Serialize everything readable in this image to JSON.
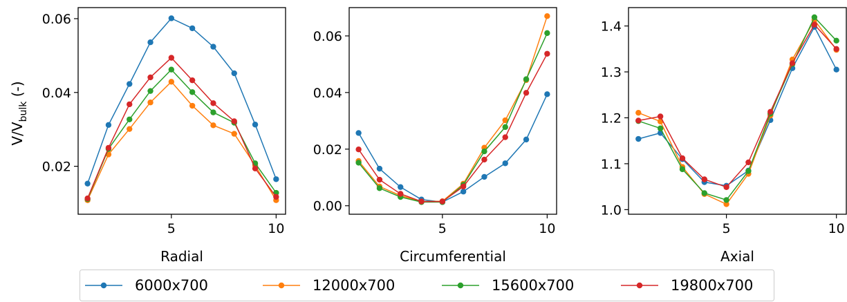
{
  "figure": {
    "ylabel_main": "V/V",
    "ylabel_sub": "bulk",
    "ylabel_tail": " (-)"
  },
  "legend": {
    "placement": "bottom-center",
    "entries": [
      {
        "name": "6000x700",
        "color": "#1f77b4"
      },
      {
        "name": "12000x700",
        "color": "#ff7f0e"
      },
      {
        "name": "15600x700",
        "color": "#2ca02c"
      },
      {
        "name": "19800x700",
        "color": "#d62728"
      }
    ]
  },
  "chart_data": [
    {
      "type": "line",
      "xlabel": "Radial",
      "ylabel": "V/Vbulk (-)",
      "x": [
        1,
        2,
        3,
        4,
        5,
        6,
        7,
        8,
        9,
        10
      ],
      "xticks": [
        5,
        10
      ],
      "xtick_labels": [
        "5",
        "10"
      ],
      "xlim": [
        0.55,
        10.45
      ],
      "ylim": [
        0.007,
        0.063
      ],
      "yticks": [
        0.02,
        0.04,
        0.06
      ],
      "ytick_labels": [
        "0.02",
        "0.04",
        "0.06"
      ],
      "grid": false,
      "series": [
        {
          "name": "6000x700",
          "values": [
            0.0153,
            0.0312,
            0.0423,
            0.0536,
            0.0601,
            0.0574,
            0.0524,
            0.0452,
            0.0313,
            0.0165
          ]
        },
        {
          "name": "12000x700",
          "values": [
            0.0108,
            0.0232,
            0.0301,
            0.0373,
            0.0429,
            0.0364,
            0.0311,
            0.0288,
            0.0202,
            0.0108
          ]
        },
        {
          "name": "15600x700",
          "values": [
            0.0111,
            0.0247,
            0.0327,
            0.0404,
            0.0462,
            0.0401,
            0.0346,
            0.0318,
            0.0208,
            0.0128
          ]
        },
        {
          "name": "19800x700",
          "values": [
            0.0113,
            0.025,
            0.0368,
            0.0441,
            0.0494,
            0.0433,
            0.0371,
            0.0322,
            0.0194,
            0.0117
          ]
        }
      ]
    },
    {
      "type": "line",
      "xlabel": "Circumferential",
      "ylabel": "",
      "x": [
        1,
        2,
        3,
        4,
        5,
        6,
        7,
        8,
        9,
        10
      ],
      "xticks": [
        5,
        10
      ],
      "xtick_labels": [
        "5",
        "10"
      ],
      "xlim": [
        0.55,
        10.45
      ],
      "ylim": [
        -0.003,
        0.07
      ],
      "yticks": [
        0.0,
        0.02,
        0.04,
        0.06
      ],
      "ytick_labels": [
        "0.00",
        "0.02",
        "0.04",
        "0.06"
      ],
      "grid": false,
      "series": [
        {
          "name": "6000x700",
          "values": [
            0.0257,
            0.0131,
            0.0066,
            0.0022,
            0.0013,
            0.005,
            0.0102,
            0.015,
            0.0234,
            0.0394
          ]
        },
        {
          "name": "12000x700",
          "values": [
            0.0158,
            0.0068,
            0.0036,
            0.0015,
            0.0016,
            0.0078,
            0.0205,
            0.0302,
            0.0444,
            0.067
          ]
        },
        {
          "name": "15600x700",
          "values": [
            0.0152,
            0.0062,
            0.0031,
            0.0013,
            0.0013,
            0.0074,
            0.0192,
            0.0278,
            0.0447,
            0.061
          ]
        },
        {
          "name": "19800x700",
          "values": [
            0.0199,
            0.0092,
            0.0042,
            0.0015,
            0.0015,
            0.0068,
            0.0163,
            0.0242,
            0.0399,
            0.0537
          ]
        }
      ]
    },
    {
      "type": "line",
      "xlabel": "Axial",
      "ylabel": "",
      "x": [
        1,
        2,
        3,
        4,
        5,
        6,
        7,
        8,
        9,
        10
      ],
      "xticks": [
        5,
        10
      ],
      "xtick_labels": [
        "5",
        "10"
      ],
      "xlim": [
        0.55,
        10.45
      ],
      "ylim": [
        0.99,
        1.44
      ],
      "yticks": [
        1.0,
        1.1,
        1.2,
        1.3,
        1.4
      ],
      "ytick_labels": [
        "1.0",
        "1.1",
        "1.2",
        "1.3",
        "1.4"
      ],
      "grid": false,
      "series": [
        {
          "name": "6000x700",
          "values": [
            1.154,
            1.167,
            1.11,
            1.06,
            1.052,
            1.085,
            1.195,
            1.308,
            1.398,
            1.305
          ]
        },
        {
          "name": "12000x700",
          "values": [
            1.211,
            1.192,
            1.093,
            1.034,
            1.012,
            1.078,
            1.205,
            1.327,
            1.413,
            1.348
          ]
        },
        {
          "name": "15600x700",
          "values": [
            1.193,
            1.177,
            1.088,
            1.036,
            1.021,
            1.084,
            1.209,
            1.317,
            1.419,
            1.368
          ]
        },
        {
          "name": "19800x700",
          "values": [
            1.194,
            1.203,
            1.112,
            1.066,
            1.049,
            1.103,
            1.213,
            1.319,
            1.403,
            1.35
          ]
        }
      ]
    }
  ]
}
